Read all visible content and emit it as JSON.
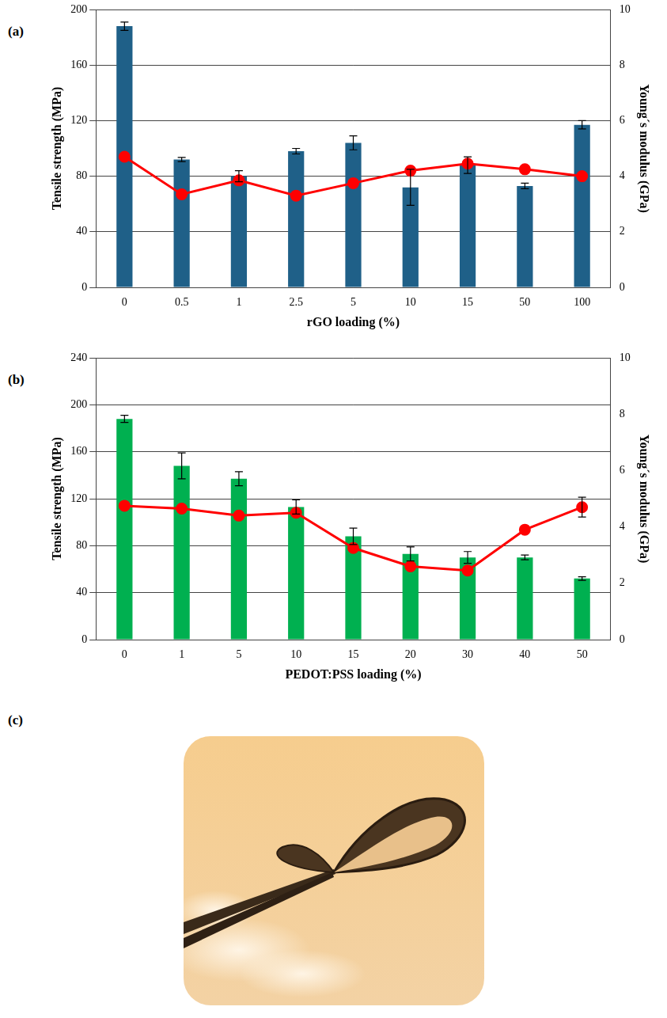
{
  "chart_data": [
    {
      "type": "bar",
      "panel_label": "(a)",
      "x_label": "rGO loading (%)",
      "y_label": "Tensile strength (MPa)",
      "y2_label": "Young´s modulus (GPa)",
      "categories": [
        "0",
        "0.5",
        "1",
        "2.5",
        "5",
        "10",
        "15",
        "50",
        "100"
      ],
      "series": [
        {
          "type": "bar",
          "color": "#1f6088",
          "values": [
            188,
            92,
            80,
            98,
            104,
            72,
            88,
            73,
            117
          ],
          "errors": [
            3,
            1.5,
            4,
            2,
            5,
            13,
            6,
            2,
            3
          ]
        },
        {
          "type": "line",
          "axis": "y2",
          "color": "#ff0000",
          "marker": "circle",
          "values": [
            4.7,
            3.35,
            3.85,
            3.3,
            3.75,
            4.2,
            4.45,
            4.25,
            4.0
          ]
        }
      ],
      "ylim": [
        0,
        200
      ],
      "yticks": [
        0,
        40,
        80,
        120,
        160,
        200
      ],
      "y2lim": [
        0,
        10
      ],
      "y2ticks": [
        0,
        2,
        4,
        6,
        8,
        10
      ],
      "grid": true
    },
    {
      "type": "bar",
      "panel_label": "(b)",
      "x_label": "PEDOT:PSS loading (%)",
      "y_label": "Tensile strength (MPa)",
      "y2_label": "Young´s modulus (GPa)",
      "categories": [
        "0",
        "1",
        "5",
        "10",
        "15",
        "20",
        "30",
        "40",
        "50"
      ],
      "series": [
        {
          "type": "bar",
          "color": "#00b050",
          "values": [
            188,
            148,
            137,
            113,
            88,
            73,
            70,
            70,
            52
          ],
          "errors": [
            3,
            11,
            6,
            6,
            7,
            6,
            5,
            2,
            1.5
          ]
        },
        {
          "type": "line",
          "axis": "y2",
          "color": "#ff0000",
          "marker": "circle",
          "values": [
            4.75,
            4.65,
            4.4,
            4.5,
            3.25,
            2.6,
            2.45,
            3.9,
            4.7
          ],
          "errors": [
            null,
            null,
            null,
            null,
            null,
            null,
            null,
            null,
            0.35
          ]
        }
      ],
      "ylim": [
        0,
        240
      ],
      "yticks": [
        0,
        40,
        80,
        120,
        160,
        200,
        240
      ],
      "y2lim": [
        0,
        10
      ],
      "y2ticks": [
        0,
        2,
        4,
        6,
        8,
        10
      ],
      "grid": true
    }
  ],
  "photo": {
    "panel_label": "(c)"
  }
}
